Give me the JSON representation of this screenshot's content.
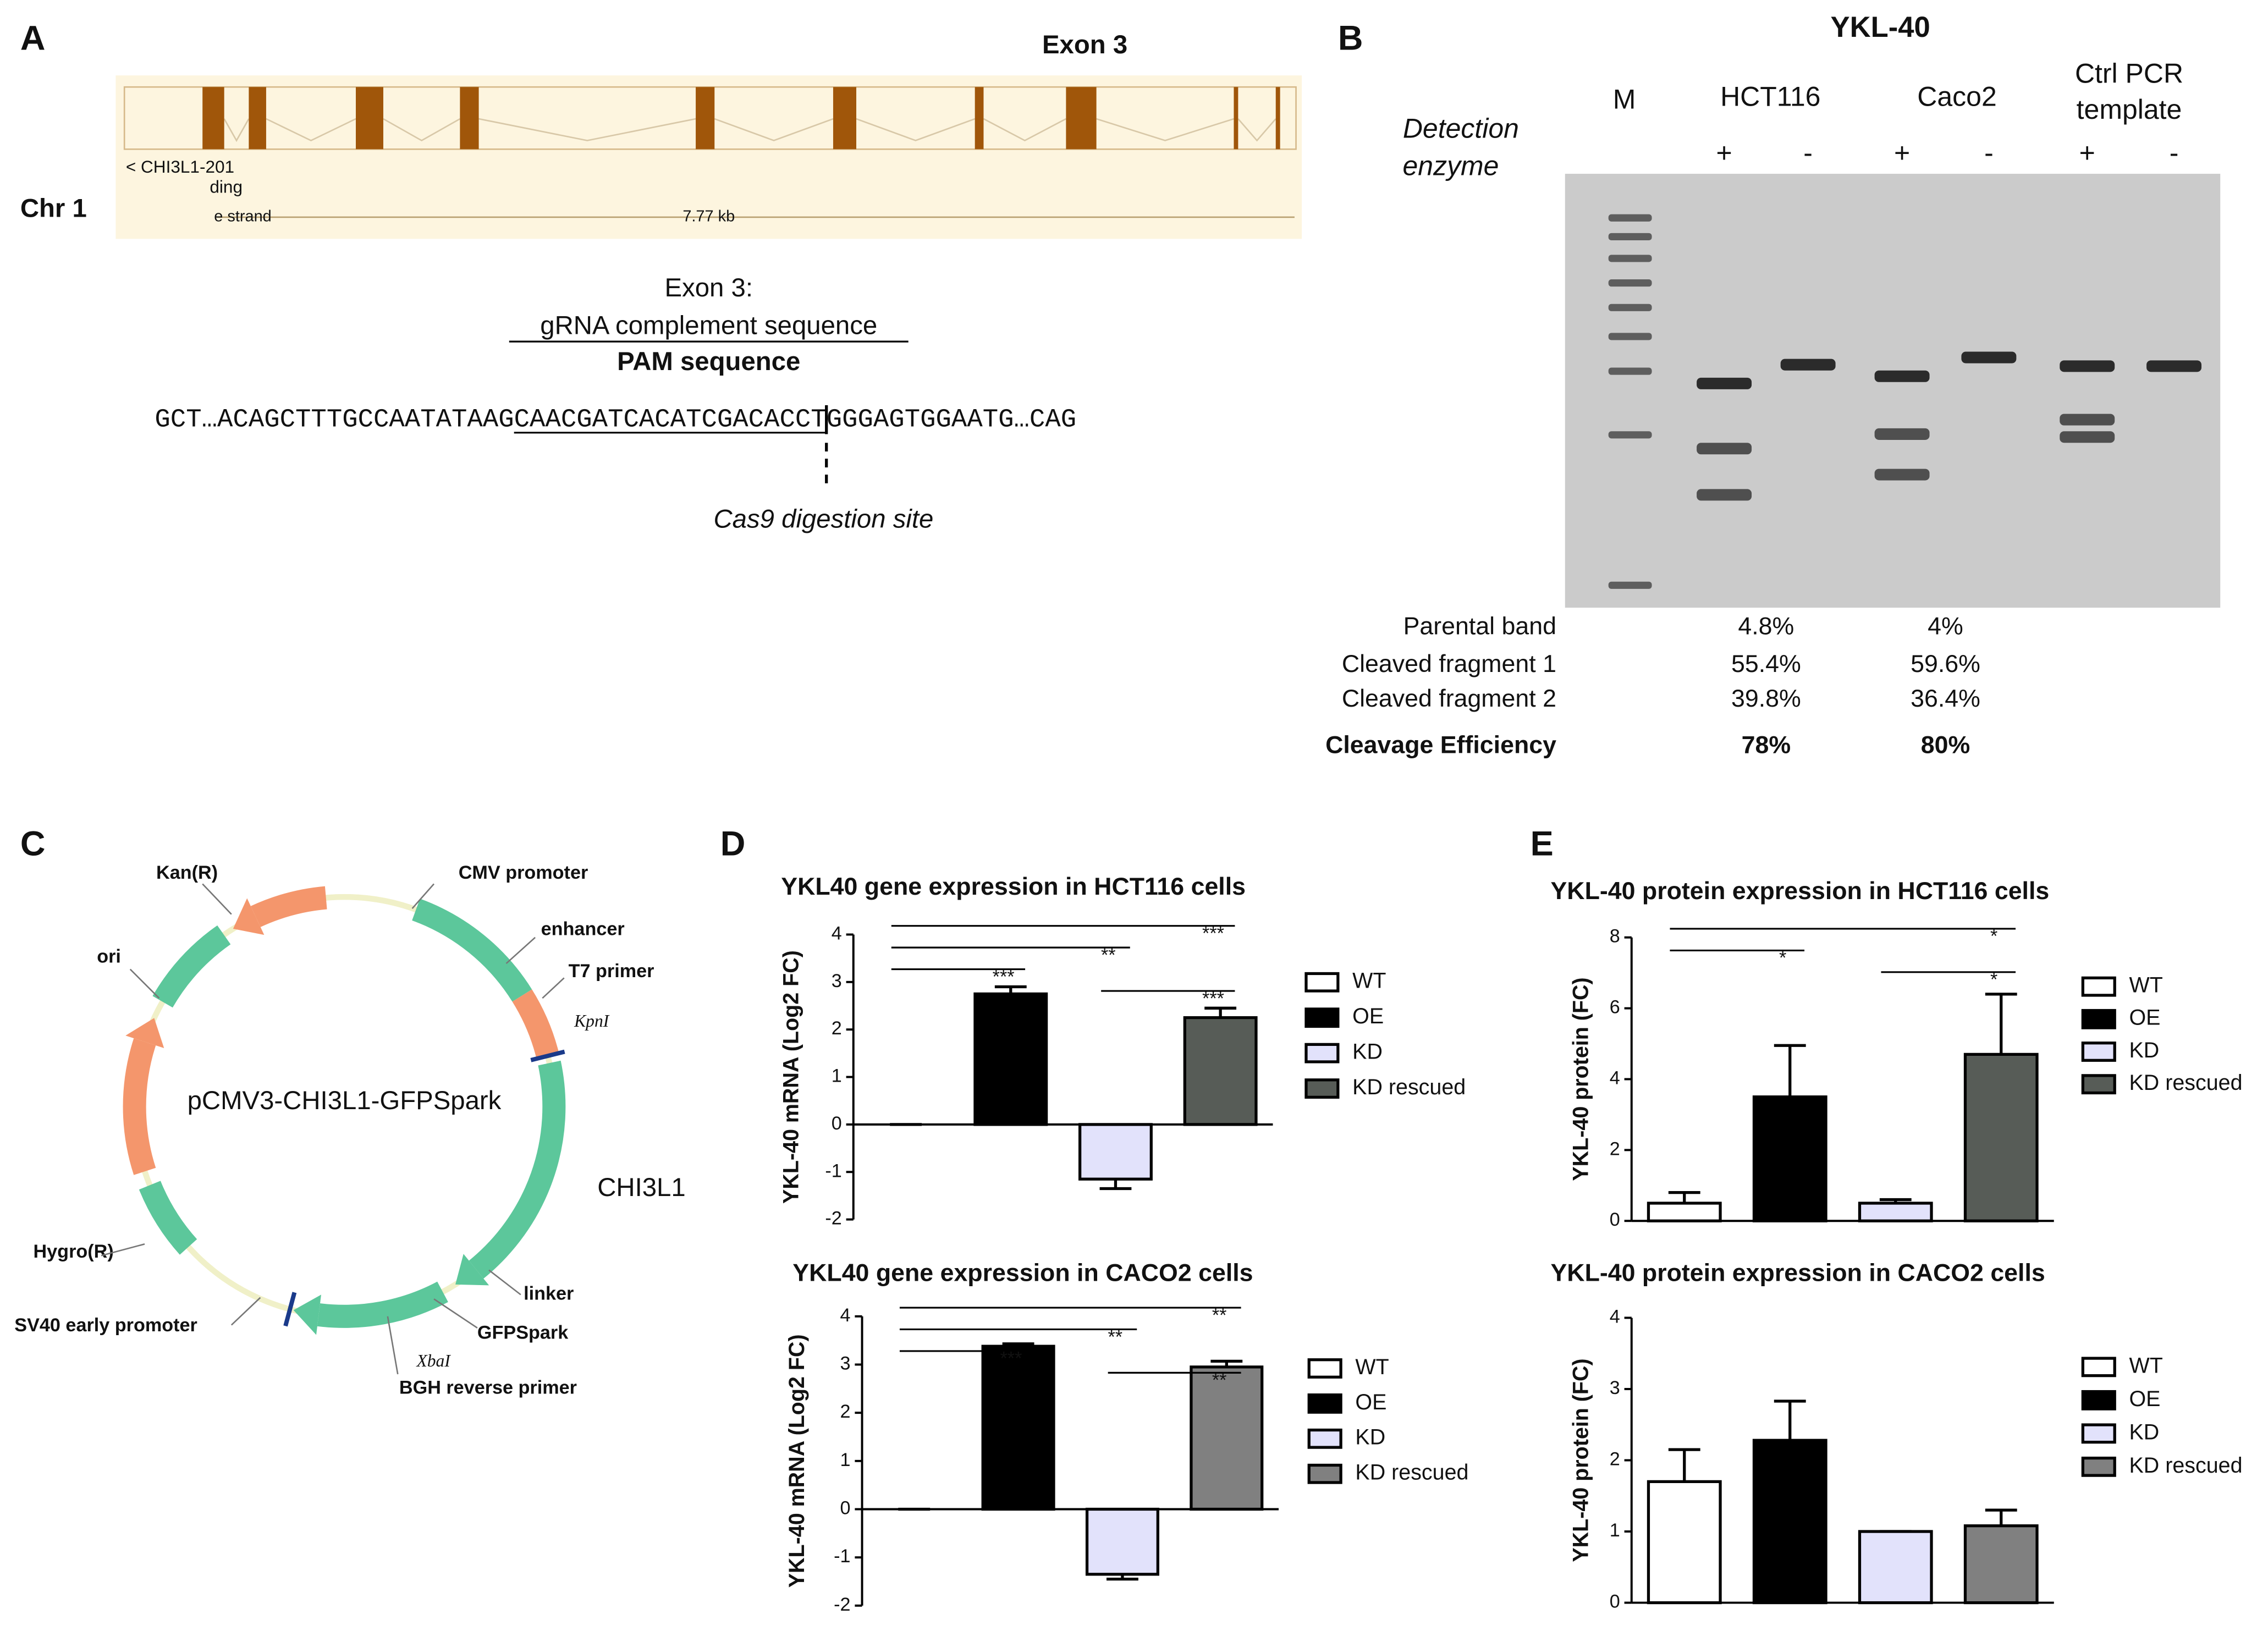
{
  "panel_labels": [
    "A",
    "B",
    "C",
    "D",
    "E"
  ],
  "gene": {
    "exon_label": "Exon 3",
    "chromosome": "Chr 1",
    "transcript": "< CHI3L1-201",
    "biotype": "ding",
    "strand": "e strand",
    "length": "7.77 kb"
  },
  "guide": {
    "heading": "Exon 3:",
    "grna_label": "gRNA complement sequence",
    "pam_label": "PAM sequence",
    "sequence": [
      "GCT…ACAGCTTTGCCAATATAAG",
      "CAACGATCACATCGACACCT",
      "GGG",
      "AGTGGAATG…CAG"
    ],
    "cut_label": "Cas9 digestion site"
  },
  "gel": {
    "title": "YKL-40",
    "enzyme_label": [
      "Detection",
      "enzyme"
    ],
    "marker": "M",
    "samples": [
      "HCT116",
      "Caco2"
    ],
    "control": [
      "Ctrl PCR",
      "template"
    ],
    "enzyme_signs": [
      "+",
      "-",
      "+",
      "-",
      "+",
      "-"
    ]
  },
  "table": {
    "rows": [
      [
        "Parental band",
        "4.8%",
        "4%"
      ],
      [
        "Cleaved fragment 1",
        "55.4%",
        "59.6%"
      ],
      [
        "Cleaved fragment 2",
        "39.8%",
        "36.4%"
      ],
      [
        "Cleavage Efficiency",
        "78%",
        "80%"
      ]
    ]
  },
  "plasmid": {
    "name": "pCMV3-CHI3L1-GFPSpark",
    "features": [
      "Kan(R)",
      "CMV promoter",
      "enhancer",
      "T7 primer",
      "KpnI",
      "ori",
      "CHI3L1",
      "Hygro(R)",
      "linker",
      "GFPSpark",
      "SV40 early promoter",
      "XbaI",
      "BGH reverse primer"
    ]
  },
  "chart_data": [
    {
      "type": "bar",
      "title": "YKL40 gene expression in HCT116 cells",
      "y_label": "YKL-40 mRNA (Log2 FC)",
      "categories": [
        "WT",
        "OE",
        "KD",
        "KD rescued"
      ],
      "values": [
        0,
        2.75,
        -1.15,
        2.25
      ],
      "errors": [
        0,
        0.15,
        0.2,
        0.2
      ],
      "colors": [
        "#ffffff",
        "#000000",
        "#e2e2fb",
        "#575c57"
      ],
      "ylim": [
        -2,
        4
      ],
      "yticks": [
        -2,
        -1,
        0,
        1,
        2,
        3,
        4
      ],
      "significance": [
        {
          "pair": [
            "WT",
            "KD rescued"
          ],
          "label": "***"
        },
        {
          "pair": [
            "WT",
            "KD"
          ],
          "label": "**"
        },
        {
          "pair": [
            "WT",
            "OE"
          ],
          "label": "***"
        },
        {
          "pair": [
            "KD",
            "KD rescued"
          ],
          "label": "***"
        }
      ]
    },
    {
      "type": "bar",
      "title": "YKL40 gene expression in CACO2 cells",
      "y_label": "YKL-40 mRNA (Log2 FC)",
      "categories": [
        "WT",
        "OE",
        "KD",
        "KD rescued"
      ],
      "values": [
        0,
        3.38,
        -1.35,
        2.95
      ],
      "errors": [
        0,
        0.05,
        0.1,
        0.12
      ],
      "colors": [
        "#ffffff",
        "#000000",
        "#e2e2fb",
        "#808080"
      ],
      "ylim": [
        -2,
        4
      ],
      "yticks": [
        -2,
        -1,
        0,
        1,
        2,
        3,
        4
      ],
      "significance": [
        {
          "pair": [
            "WT",
            "KD rescued"
          ],
          "label": "**"
        },
        {
          "pair": [
            "WT",
            "KD"
          ],
          "label": "**"
        },
        {
          "pair": [
            "WT",
            "OE"
          ],
          "label": "***"
        },
        {
          "pair": [
            "KD",
            "KD rescued"
          ],
          "label": "**"
        }
      ]
    },
    {
      "type": "bar",
      "title": "YKL-40 protein expression in HCT116 cells",
      "y_label": "YKL-40 protein (FC)",
      "categories": [
        "WT",
        "OE",
        "KD",
        "KD rescued"
      ],
      "values": [
        0.5,
        3.5,
        0.5,
        4.7
      ],
      "errors": [
        0.3,
        1.45,
        0.1,
        1.7
      ],
      "colors": [
        "#ffffff",
        "#000000",
        "#e2e2fb",
        "#575c57"
      ],
      "ylim": [
        0,
        8
      ],
      "yticks": [
        0,
        2,
        4,
        6,
        8
      ],
      "significance": [
        {
          "pair": [
            "WT",
            "KD rescued"
          ],
          "label": "*"
        },
        {
          "pair": [
            "WT",
            "OE"
          ],
          "label": "*"
        },
        {
          "pair": [
            "KD",
            "KD rescued"
          ],
          "label": "*"
        }
      ]
    },
    {
      "type": "bar",
      "title": "YKL-40 protein expression in CACO2 cells",
      "y_label": "YKL-40 protein (FC)",
      "categories": [
        "WT",
        "OE",
        "KD",
        "KD rescued"
      ],
      "values": [
        1.7,
        2.28,
        1.0,
        1.08
      ],
      "errors": [
        0.45,
        0.55,
        0,
        0.22
      ],
      "colors": [
        "#ffffff",
        "#000000",
        "#e2e2fb",
        "#808080"
      ],
      "ylim": [
        0,
        4
      ],
      "yticks": [
        0,
        1,
        2,
        3,
        4
      ],
      "significance": []
    }
  ]
}
